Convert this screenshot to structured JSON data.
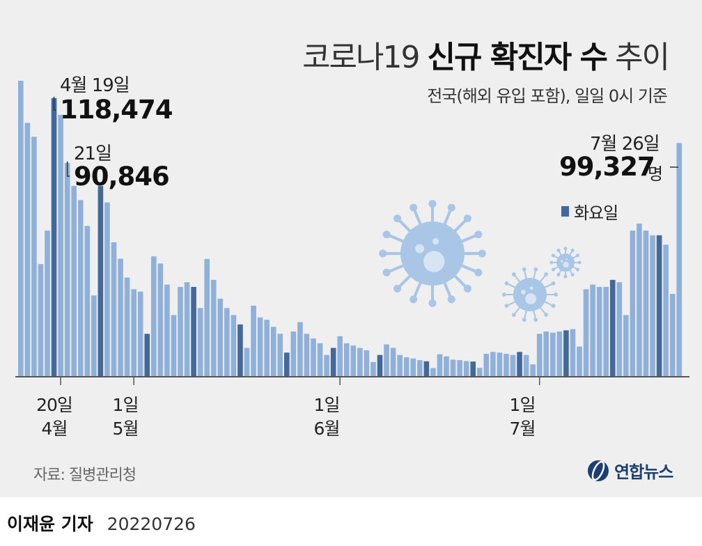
{
  "title": {
    "prefix": "코로나19",
    "bold": "신규 확진자 수",
    "suffix": "추이"
  },
  "subtitle": "전국(해외 유입 포함), 일일 0시 기준",
  "annotations": {
    "peak1_date": "4월 19일",
    "peak1_value": "118,474",
    "peak2_date": "21일",
    "peak2_value": "90,846",
    "latest_date": "7월 26일",
    "latest_value": "99,327",
    "latest_unit": "명"
  },
  "legend": {
    "label": "화요일",
    "color": "#43689a"
  },
  "x_labels": [
    {
      "day": "20일",
      "month": "4월"
    },
    {
      "day": "1일",
      "month": "5월"
    },
    {
      "day": "1일",
      "month": "6월"
    },
    {
      "day": "1일",
      "month": "7월"
    }
  ],
  "source": "자료: 질병관리청",
  "logo": {
    "text": "연합뉴스",
    "icon": "yonhap-globe-icon"
  },
  "footer": {
    "reporter": "이재윤 기자",
    "date": "20220726"
  },
  "colors": {
    "bar": "#8fb0d9",
    "tuesday": "#43689a",
    "axis": "#555555",
    "virus": "#a9c6e6",
    "virus_core": "#d6e4f3"
  },
  "chart_data": {
    "type": "bar",
    "x_start": "2022-04-14",
    "x_end": "2022-07-26",
    "ylim": [
      0,
      130000
    ],
    "values": [
      125846,
      107916,
      102000,
      47743,
      62000,
      118474,
      111319,
      90846,
      81058,
      75000,
      64000,
      34370,
      81000,
      74000,
      57000,
      50000,
      42000,
      37000,
      36000,
      18000,
      51000,
      48000,
      39000,
      26000,
      38000,
      40000,
      38000,
      29000,
      49933,
      41000,
      33000,
      29000,
      26000,
      22000,
      12000,
      30000,
      25000,
      24000,
      21000,
      18000,
      10000,
      19000,
      23000,
      18000,
      16000,
      14000,
      9000,
      12000,
      17000,
      14000,
      13000,
      12000,
      11000,
      6000,
      9000,
      13500,
      12000,
      9000,
      8000,
      7500,
      6800,
      6300,
      3400,
      9300,
      8400,
      7000,
      6800,
      6400,
      6200,
      3500,
      9500,
      10300,
      10000,
      9500,
      9000,
      10300,
      9000,
      5000,
      18000,
      19000,
      18500,
      19000,
      19500,
      20000,
      12600,
      37000,
      39000,
      38000,
      38000,
      41000,
      40000,
      26000,
      62000,
      65000,
      62000,
      60000,
      60000,
      56000,
      35000,
      99327
    ]
  }
}
